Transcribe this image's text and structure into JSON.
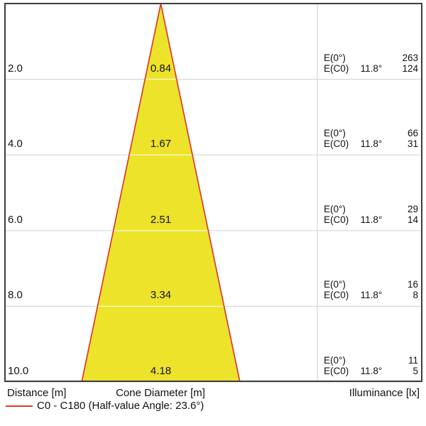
{
  "chart_data": {
    "type": "area",
    "subtype": "photometric-cone-diagram",
    "title": "",
    "xlabel": "Cone Diameter [m]",
    "ylabel": "Distance [m]",
    "value_column_label": "Illuminance [lx]",
    "distance_range_m": [
      0,
      10
    ],
    "grid": true,
    "columns": {
      "distance_label": "Distance [m]",
      "cone_label": "Cone Diameter [m]",
      "illuminance_label": "Illuminance [lx]"
    },
    "legend": {
      "label": "C0 - C180 (Half-value Angle: 23.6°)",
      "position": "bottom-left"
    },
    "half_value_angle_deg": 23.6,
    "beam_half_angle_deg": 11.8,
    "rows": [
      {
        "distance": "2.0",
        "distance_m": 2,
        "cone_diameter": "0.84",
        "cone_diameter_m": 0.84,
        "e0_label": "E(0°)",
        "ec0_label": "E(C0)",
        "angle": "11.8°",
        "e0_lx": "263",
        "ec0_lx": "124"
      },
      {
        "distance": "4.0",
        "distance_m": 4,
        "cone_diameter": "1.67",
        "cone_diameter_m": 1.67,
        "e0_label": "E(0°)",
        "ec0_label": "E(C0)",
        "angle": "11.8°",
        "e0_lx": "66",
        "ec0_lx": "31"
      },
      {
        "distance": "6.0",
        "distance_m": 6,
        "cone_diameter": "2.51",
        "cone_diameter_m": 2.51,
        "e0_label": "E(0°)",
        "ec0_label": "E(C0)",
        "angle": "11.8°",
        "e0_lx": "29",
        "ec0_lx": "14"
      },
      {
        "distance": "8.0",
        "distance_m": 8,
        "cone_diameter": "3.34",
        "cone_diameter_m": 3.34,
        "e0_label": "E(0°)",
        "ec0_label": "E(C0)",
        "angle": "11.8°",
        "e0_lx": "16",
        "ec0_lx": "8"
      },
      {
        "distance": "10.0",
        "distance_m": 10,
        "cone_diameter": "4.18",
        "cone_diameter_m": 4.18,
        "e0_label": "E(0°)",
        "ec0_label": "E(C0)",
        "angle": "11.8°",
        "e0_lx": "11",
        "ec0_lx": "5"
      }
    ],
    "colors": {
      "cone_fill": "#ece32a",
      "cone_stroke": "#dd3a2b",
      "grid": "#d8d8d8",
      "grid_on_cone": "rgba(255,255,255,0.75)",
      "frame": "#3d3d3d",
      "text": "#111111"
    }
  }
}
